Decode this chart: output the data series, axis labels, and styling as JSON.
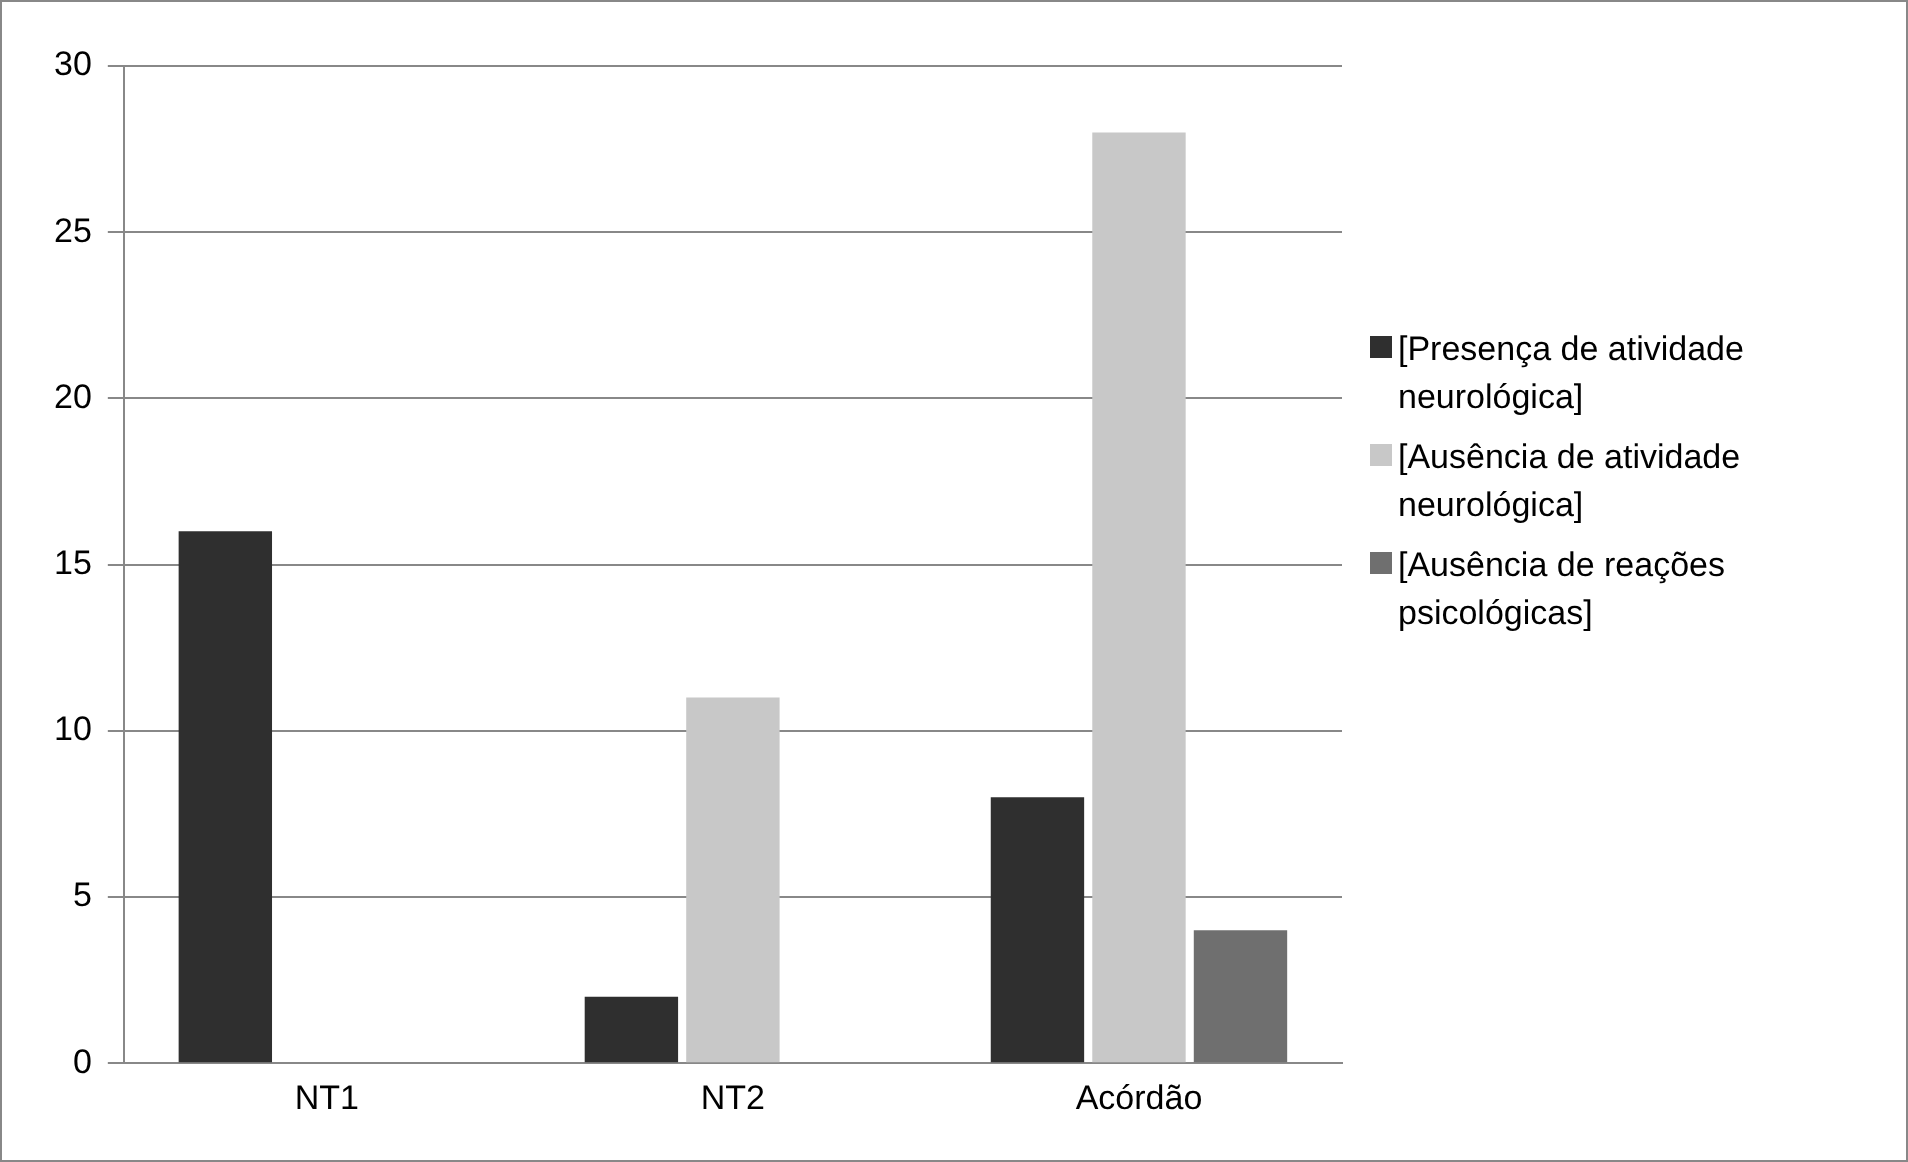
{
  "chart_data": {
    "type": "bar",
    "categories": [
      "NT1",
      "NT2",
      "Acórdão"
    ],
    "series": [
      {
        "name": "[Presença de atividade neurológica]",
        "color": "#2f2f2f",
        "values": [
          16,
          2,
          8
        ]
      },
      {
        "name": "[Ausência de atividade neurológica]",
        "color": "#c8c8c8",
        "values": [
          0,
          11,
          28
        ]
      },
      {
        "name": "[Ausência de reações psicológicas]",
        "color": "#6f6f6f",
        "values": [
          0,
          0,
          4
        ]
      }
    ],
    "ylim": [
      0,
      30
    ],
    "yticks": [
      0,
      5,
      10,
      15,
      20,
      25,
      30
    ],
    "grid": "y",
    "legend": "right"
  }
}
